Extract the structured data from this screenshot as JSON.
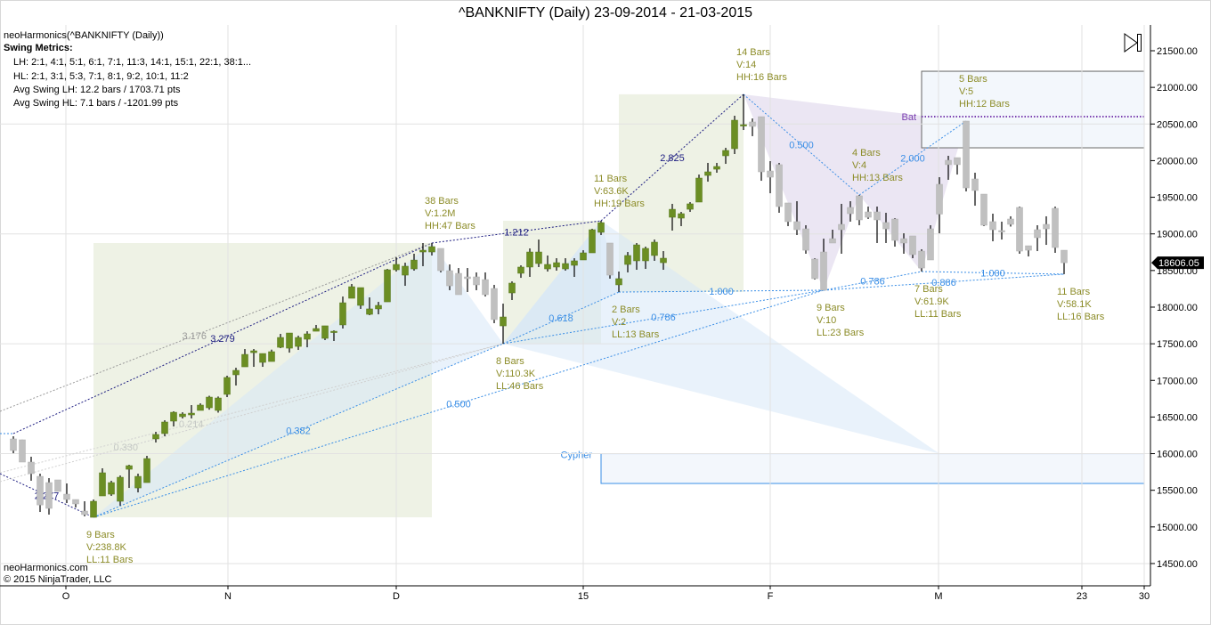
{
  "header": {
    "title": "^BANKNIFTY (Daily)  23-09-2014 - 21-03-2015"
  },
  "legend": {
    "indicator": "neoHarmonics(^BANKNIFTY (Daily))",
    "heading": "Swing Metrics:",
    "lines": [
      "LH: 2:1, 4:1, 5:1, 6:1, 7:1, 11:3, 14:1, 15:1, 22:1, 38:1...",
      "HL: 2:1, 3:1, 5:3, 7:1, 8:1, 9:2, 10:1, 11:2",
      "Avg Swing LH: 12.2 bars / 1703.71 pts",
      "Avg Swing HL: 7.1 bars / -1201.99 pts"
    ]
  },
  "footer": {
    "site": "neoHarmonics.com",
    "copyright": "© 2015 NinjaTrader, LLC"
  },
  "controls": {
    "scroll_end_icon": "play-to-end-icon"
  },
  "colors": {
    "up": "#6b8e23",
    "down": "#c0c0c0",
    "navy": "#1c1c80",
    "blue": "#3a8ee6",
    "gray": "#999999",
    "lightgray": "#d0d0d0",
    "label": "#8c8c28",
    "time_box": "#eef2e5",
    "triangle": "#d7e8f8",
    "bat_fill": "#e4ddef",
    "bat_line": "#7b3fb0"
  },
  "chart_data": {
    "type": "candlestick",
    "title": "^BANKNIFTY (Daily)  23-09-2014 - 21-03-2015",
    "ylim": [
      14300,
      21800
    ],
    "yticks": [
      14500,
      15000,
      15500,
      16000,
      16500,
      17000,
      17500,
      18000,
      18500,
      19000,
      19500,
      20000,
      20500,
      21000,
      21500
    ],
    "ytick_labels": [
      "14500.00",
      "15000.00",
      "15500.00",
      "16000.00",
      "16500.00",
      "17000.00",
      "17500.00",
      "18000.00",
      "18500.00",
      "19000.00",
      "19500.00",
      "20000.00",
      "20500.00",
      "21000.00",
      "21500.00"
    ],
    "xticks": [
      {
        "label": "O",
        "bar": 5.9
      },
      {
        "label": "N",
        "bar": 24.1
      },
      {
        "label": "D",
        "bar": 43
      },
      {
        "label": "15",
        "bar": 64
      },
      {
        "label": "F",
        "bar": 85
      },
      {
        "label": "M",
        "bar": 103.9
      },
      {
        "label": "23",
        "bar": 120
      },
      {
        "label": "30",
        "bar": 127
      }
    ],
    "last_price": "18606.05",
    "candles_ohlc": [
      [
        16201,
        16237,
        16006,
        16043
      ],
      [
        16189,
        16190,
        15885,
        15885
      ],
      [
        15885,
        15958,
        15630,
        15727
      ],
      [
        15690,
        15727,
        15204,
        15300
      ],
      [
        15605,
        15666,
        15168,
        15253
      ],
      [
        15642,
        15642,
        15484,
        15484
      ],
      [
        15447,
        15593,
        15326,
        15374
      ],
      [
        15374,
        15374,
        15265,
        15314
      ],
      [
        15216,
        15350,
        15144,
        15168
      ],
      [
        15131,
        15374,
        15131,
        15350
      ],
      [
        15423,
        15800,
        15423,
        15739
      ],
      [
        15447,
        15630,
        15423,
        15605
      ],
      [
        15350,
        15702,
        15290,
        15678
      ],
      [
        15787,
        15848,
        15532,
        15836
      ],
      [
        15532,
        15727,
        15471,
        15690
      ],
      [
        15605,
        15970,
        15605,
        15933
      ],
      [
        16201,
        16298,
        16152,
        16262
      ],
      [
        16274,
        16456,
        16237,
        16432
      ],
      [
        16444,
        16578,
        16371,
        16565
      ],
      [
        16505,
        16565,
        16480,
        16541
      ],
      [
        16529,
        16663,
        16480,
        16553
      ],
      [
        16590,
        16687,
        16590,
        16663
      ],
      [
        16626,
        16790,
        16600,
        16772
      ],
      [
        16590,
        16780,
        16560,
        16760
      ],
      [
        16809,
        17064,
        16772,
        17040
      ],
      [
        17076,
        17173,
        16930,
        17137
      ],
      [
        17185,
        17428,
        17185,
        17355
      ],
      [
        17379,
        17428,
        17185,
        17404
      ],
      [
        17246,
        17367,
        17185,
        17367
      ],
      [
        17258,
        17420,
        17258,
        17392
      ],
      [
        17452,
        17635,
        17440,
        17586
      ],
      [
        17440,
        17647,
        17379,
        17647
      ],
      [
        17464,
        17610,
        17416,
        17586
      ],
      [
        17562,
        17671,
        17452,
        17635
      ],
      [
        17671,
        17757,
        17671,
        17708
      ],
      [
        17574,
        17745,
        17550,
        17745
      ],
      [
        17660,
        17683,
        17538,
        17671
      ],
      [
        17757,
        18145,
        17708,
        18060
      ],
      [
        18121,
        18316,
        18121,
        18279
      ],
      [
        18024,
        18267,
        17976,
        18267
      ],
      [
        17902,
        18133,
        17890,
        17976
      ],
      [
        17976,
        18072,
        17902,
        18024
      ],
      [
        18072,
        18522,
        18072,
        18510
      ],
      [
        18510,
        18680,
        18486,
        18583
      ],
      [
        18437,
        18607,
        18291,
        18559
      ],
      [
        18522,
        18729,
        18498,
        18643
      ],
      [
        18753,
        18875,
        18559,
        18777
      ],
      [
        18753,
        18875,
        18705,
        18826
      ],
      [
        18802,
        18802,
        18474,
        18498
      ],
      [
        18498,
        18583,
        18231,
        18291
      ],
      [
        18461,
        18534,
        18170,
        18170
      ],
      [
        18413,
        18534,
        18206,
        18389
      ],
      [
        18413,
        18474,
        18231,
        18304
      ],
      [
        18376,
        18474,
        18145,
        18170
      ],
      [
        18255,
        18304,
        17781,
        17830
      ],
      [
        17744,
        18048,
        17501,
        17866
      ],
      [
        18194,
        18352,
        18097,
        18328
      ],
      [
        18462,
        18571,
        18400,
        18547
      ],
      [
        18547,
        18802,
        18413,
        18753
      ],
      [
        18595,
        18923,
        18547,
        18753
      ],
      [
        18522,
        18705,
        18486,
        18583
      ],
      [
        18547,
        18668,
        18498,
        18607
      ],
      [
        18522,
        18668,
        18498,
        18595
      ],
      [
        18571,
        18668,
        18413,
        18632
      ],
      [
        18644,
        18777,
        18644,
        18741
      ],
      [
        18741,
        19070,
        18741,
        19057
      ],
      [
        19021,
        19179,
        18984,
        19154
      ],
      [
        18875,
        18875,
        18389,
        18437
      ],
      [
        18304,
        18486,
        18206,
        18389
      ],
      [
        18583,
        18753,
        18474,
        18705
      ],
      [
        18632,
        18875,
        18510,
        18850
      ],
      [
        18632,
        18826,
        18522,
        18802
      ],
      [
        18705,
        18923,
        18632,
        18887
      ],
      [
        18607,
        18765,
        18510,
        18668
      ],
      [
        19227,
        19410,
        19045,
        19336
      ],
      [
        19215,
        19300,
        19106,
        19276
      ],
      [
        19336,
        19434,
        19300,
        19410
      ],
      [
        19434,
        19810,
        19434,
        19762
      ],
      [
        19798,
        19969,
        19713,
        19847
      ],
      [
        19883,
        19969,
        19835,
        19920
      ],
      [
        20066,
        20175,
        19956,
        20139
      ],
      [
        20163,
        20613,
        20090,
        20552
      ],
      [
        20491,
        20905,
        20418,
        20491
      ],
      [
        20528,
        20576,
        20334,
        20467
      ],
      [
        20600,
        20600,
        19725,
        19847
      ],
      [
        19859,
        19993,
        19555,
        19774
      ],
      [
        19945,
        19969,
        19288,
        19373
      ],
      [
        19422,
        19422,
        19106,
        19167
      ],
      [
        19167,
        19446,
        18984,
        19057
      ],
      [
        19069,
        19118,
        18729,
        18777
      ],
      [
        18656,
        18668,
        18376,
        18389
      ],
      [
        18753,
        18935,
        18231,
        18231
      ],
      [
        18935,
        19057,
        18875,
        18875
      ],
      [
        19130,
        19410,
        18729,
        19057
      ],
      [
        19361,
        19446,
        19167,
        19276
      ],
      [
        19519,
        19531,
        19118,
        19191
      ],
      [
        19300,
        19373,
        19203,
        19227
      ],
      [
        19300,
        19373,
        18875,
        19191
      ],
      [
        19155,
        19288,
        18875,
        19069
      ],
      [
        19203,
        19215,
        18826,
        18911
      ],
      [
        18935,
        19008,
        18729,
        18875
      ],
      [
        18972,
        18972,
        18668,
        18717
      ],
      [
        18765,
        18790,
        18486,
        18534
      ],
      [
        18644,
        19118,
        18644,
        19069
      ],
      [
        19270,
        19774,
        19008,
        19677
      ],
      [
        20005,
        20066,
        19738,
        19945
      ],
      [
        20041,
        20041,
        19810,
        19945
      ],
      [
        20540,
        20540,
        19580,
        19628
      ],
      [
        19750,
        19835,
        19385,
        19592
      ],
      [
        19543,
        19543,
        19106,
        19118
      ],
      [
        19167,
        19276,
        18899,
        19057
      ],
      [
        19045,
        19167,
        18923,
        19045
      ],
      [
        19203,
        19240,
        19100,
        19130
      ],
      [
        19361,
        19373,
        18729,
        18765
      ],
      [
        18838,
        18838,
        18692,
        18777
      ],
      [
        18948,
        19118,
        18765,
        19057
      ],
      [
        19130,
        19240,
        18850,
        19069
      ],
      [
        19349,
        19373,
        18741,
        18814
      ],
      [
        18777,
        18777,
        18450,
        18606.05
      ]
    ],
    "down_swing_bar_ranges": [
      [
        0,
        8
      ],
      [
        48,
        54
      ],
      [
        67,
        67
      ],
      [
        83,
        118
      ]
    ],
    "points": {
      "L0": {
        "bar": -1.5,
        "price": 15727
      },
      "L1a": {
        "bar": -1.5,
        "price": 16274
      },
      "L1": {
        "bar": 0,
        "price": 16274
      },
      "L2": {
        "bar": -1.5,
        "price": 16578
      },
      "L3": {
        "bar": -1.5,
        "price": 15618
      },
      "L4": {
        "bar": -1.5,
        "price": 15739
      },
      "X": {
        "bar": 9,
        "price": 15131
      },
      "A": {
        "bar": 47,
        "price": 18875
      },
      "B": {
        "bar": 55,
        "price": 17501
      },
      "C": {
        "bar": 66,
        "price": 19179
      },
      "D": {
        "bar": 68,
        "price": 18206
      },
      "E": {
        "bar": 82,
        "price": 20905
      },
      "F": {
        "bar": 91,
        "price": 18231
      },
      "G": {
        "bar": 95,
        "price": 19531
      },
      "H": {
        "bar": 102,
        "price": 18486
      },
      "I": {
        "bar": 107,
        "price": 20540
      },
      "J": {
        "bar": 118,
        "price": 18450
      },
      "K": {
        "bar": 104,
        "price": 16000
      }
    },
    "swing_lines": [
      {
        "from": "L0",
        "to": "X",
        "label": "2.277",
        "color": "navy"
      },
      {
        "from": "L1",
        "to": "A",
        "label": "3.279",
        "color": "navy"
      },
      {
        "from": "L1a",
        "to": "L1",
        "label": "",
        "color": "blue"
      },
      {
        "from": "L2",
        "to": "A",
        "label": "3.176",
        "color": "gray"
      },
      {
        "from": "L3",
        "to": "B",
        "label": "0.330",
        "color": "lightgray"
      },
      {
        "from": "L4",
        "to": "B",
        "label": "0.214",
        "color": "lightgray"
      },
      {
        "from": "A",
        "to": "C",
        "label": "1.212",
        "color": "navy"
      },
      {
        "from": "C",
        "to": "E",
        "label": "2.825",
        "color": "navy"
      },
      {
        "from": "X",
        "to": "B",
        "label": "0.382",
        "color": "blue"
      },
      {
        "from": "B",
        "to": "D",
        "label": "0.618",
        "color": "blue"
      },
      {
        "from": "D",
        "to": "F",
        "label": "1.000",
        "color": "blue"
      },
      {
        "from": "X",
        "to": "F",
        "label": "0.500",
        "color": "blue"
      },
      {
        "from": "B",
        "to": "F",
        "label": "0.786",
        "color": "blue"
      },
      {
        "from": "E",
        "to": "G",
        "label": "0.500",
        "color": "blue"
      },
      {
        "from": "G",
        "to": "I",
        "label": "2.000",
        "color": "blue"
      },
      {
        "from": "F",
        "to": "H",
        "label": "0.786",
        "color": "blue"
      },
      {
        "from": "H",
        "to": "J",
        "label": "1.000",
        "color": "blue"
      },
      {
        "from": "F",
        "to": "J",
        "label": "0.886",
        "color": "blue"
      }
    ],
    "time_boxes": [
      {
        "bar_from": 9,
        "bar_to": 47,
        "price_low": 15131,
        "price_high": 18875
      },
      {
        "bar_from": 55,
        "bar_to": 66,
        "price_low": 17501,
        "price_high": 19179
      },
      {
        "bar_from": 68,
        "bar_to": 82,
        "price_low": 18206,
        "price_high": 20905
      }
    ],
    "triangles": [
      [
        "X",
        "A",
        "B"
      ],
      [
        "B",
        "C",
        "K"
      ],
      [
        "B",
        "C",
        "D"
      ]
    ],
    "bat_polygon": [
      "E",
      "F",
      "G",
      "H",
      "I"
    ],
    "pattern_zones": [
      {
        "name": "Cypher",
        "bar_from": 66,
        "bar_to": 127,
        "price_low": 15593,
        "price_high": 16000,
        "line_price": null
      },
      {
        "name": "Bat",
        "bar_from": 102,
        "bar_to": 127,
        "price_low": 20175,
        "price_high": 21220,
        "line_price": 20601
      }
    ],
    "swing_labels": [
      {
        "point": "X",
        "pos": "below",
        "lines": [
          "9 Bars",
          "V:238.8K",
          "LL:11 Bars"
        ]
      },
      {
        "point": "A",
        "pos": "above",
        "lines": [
          "38 Bars",
          "V:1.2M",
          "HH:47 Bars"
        ]
      },
      {
        "point": "B",
        "pos": "below",
        "lines": [
          "8 Bars",
          "V:110.3K",
          "LL:46 Bars"
        ]
      },
      {
        "point": "C",
        "pos": "above",
        "lines": [
          "11 Bars",
          "V:63.6K",
          "HH:19 Bars"
        ]
      },
      {
        "point": "D",
        "pos": "below",
        "lines": [
          "2 Bars",
          "V:2",
          "LL:13 Bars"
        ]
      },
      {
        "point": "E",
        "pos": "above",
        "lines": [
          "14 Bars",
          "V:14",
          "HH:16 Bars"
        ]
      },
      {
        "point": "F",
        "pos": "below",
        "lines": [
          "9 Bars",
          "V:10",
          "LL:23 Bars"
        ]
      },
      {
        "point": "G",
        "pos": "above",
        "lines": [
          "4 Bars",
          "V:4",
          "HH:13 Bars"
        ]
      },
      {
        "point": "H",
        "pos": "below",
        "lines": [
          "7 Bars",
          "V:61.9K",
          "LL:11 Bars"
        ]
      },
      {
        "point": "I",
        "pos": "above",
        "lines": [
          "5 Bars",
          "V:5",
          "HH:12 Bars"
        ]
      },
      {
        "point": "J",
        "pos": "below",
        "lines": [
          "11 Bars",
          "V:58.1K",
          "LL:16 Bars"
        ]
      }
    ]
  }
}
